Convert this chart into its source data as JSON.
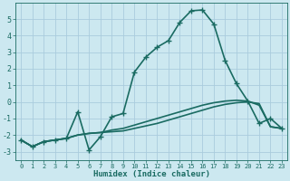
{
  "xlabel": "Humidex (Indice chaleur)",
  "bg_color": "#cce8f0",
  "grid_color": "#aaccdd",
  "line_color": "#1a6b62",
  "xlim": [
    -0.5,
    23.5
  ],
  "ylim": [
    -3.5,
    6.0
  ],
  "yticks": [
    -3,
    -2,
    -1,
    0,
    1,
    2,
    3,
    4,
    5
  ],
  "xticks": [
    0,
    1,
    2,
    3,
    4,
    5,
    6,
    7,
    8,
    9,
    10,
    11,
    12,
    13,
    14,
    15,
    16,
    17,
    18,
    19,
    20,
    21,
    22,
    23
  ],
  "series": [
    {
      "x": [
        0,
        1,
        2,
        3,
        4,
        5,
        6,
        7,
        8,
        9,
        10,
        11,
        12,
        13,
        14,
        15,
        16,
        17,
        18,
        19,
        20,
        21,
        22,
        23
      ],
      "y": [
        -2.3,
        -2.7,
        -2.4,
        -2.3,
        -2.2,
        -2.0,
        -1.9,
        -1.85,
        -1.8,
        -1.75,
        -1.6,
        -1.45,
        -1.3,
        -1.1,
        -0.9,
        -0.7,
        -0.5,
        -0.3,
        -0.15,
        -0.05,
        0.0,
        -0.1,
        -1.5,
        -1.6
      ],
      "marker": null,
      "linewidth": 1.2
    },
    {
      "x": [
        0,
        1,
        2,
        3,
        4,
        5,
        6,
        7,
        8,
        9,
        10,
        11,
        12,
        13,
        14,
        15,
        16,
        17,
        18,
        19,
        20,
        21,
        22,
        23
      ],
      "y": [
        -2.3,
        -2.7,
        -2.4,
        -2.3,
        -2.2,
        -2.0,
        -1.9,
        -1.85,
        -1.7,
        -1.6,
        -1.4,
        -1.2,
        -1.0,
        -0.8,
        -0.6,
        -0.4,
        -0.2,
        -0.05,
        0.05,
        0.1,
        0.05,
        -0.2,
        -1.5,
        -1.6
      ],
      "marker": null,
      "linewidth": 1.2
    },
    {
      "x": [
        0,
        1,
        2,
        3,
        4,
        5,
        6,
        7,
        8,
        9,
        10,
        11,
        12,
        13,
        14,
        15,
        16,
        17,
        18,
        19,
        20,
        21,
        22,
        23
      ],
      "y": [
        -2.3,
        -2.7,
        -2.4,
        -2.3,
        -2.2,
        -0.6,
        -2.9,
        -2.1,
        -0.9,
        -0.7,
        1.8,
        2.7,
        3.3,
        3.7,
        4.8,
        5.5,
        5.55,
        4.7,
        2.5,
        1.1,
        0.05,
        -1.3,
        -1.0,
        -1.6
      ],
      "marker": "+",
      "markersize": 4.5,
      "linewidth": 1.2
    }
  ]
}
